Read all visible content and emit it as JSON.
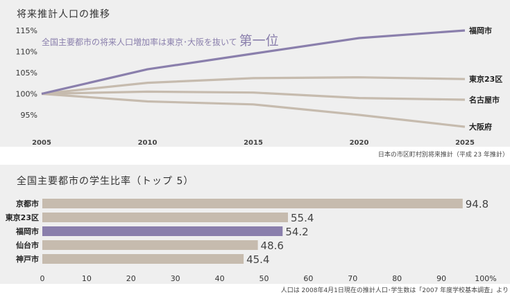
{
  "chart_data": [
    {
      "type": "line",
      "title": "将来推計人口の推移",
      "annotation": {
        "text": "全国主要都市の将来人口増加率は東京･大阪を抜いて",
        "emphasis": "第一位"
      },
      "x": [
        2005,
        2010,
        2015,
        2020,
        2025
      ],
      "x_ticks": [
        "2005",
        "2010",
        "2015",
        "2020",
        "2025"
      ],
      "y_ticks": [
        "95%",
        "100%",
        "105%",
        "110%",
        "115%"
      ],
      "ylim": [
        92,
        116
      ],
      "series": [
        {
          "name": "福岡市",
          "values": [
            100,
            105.8,
            109.5,
            113.2,
            115.0
          ],
          "color": "#8a7fac"
        },
        {
          "name": "東京23区",
          "values": [
            100,
            102.6,
            103.7,
            103.9,
            103.5
          ],
          "color": "#c6bbae"
        },
        {
          "name": "名古屋市",
          "values": [
            100,
            100.5,
            100.3,
            99.0,
            98.6
          ],
          "color": "#c6bbae"
        },
        {
          "name": "大阪府",
          "values": [
            100,
            98.2,
            97.5,
            95.0,
            92.2
          ],
          "color": "#c6bbae"
        }
      ],
      "source": "日本の市区町村別将来推計（平成 23 年推計）"
    },
    {
      "type": "bar",
      "orientation": "horizontal",
      "title": "全国主要都市の学生比率（トップ 5）",
      "categories": [
        "京都市",
        "東京23区",
        "福岡市",
        "仙台市",
        "神戸市"
      ],
      "values": [
        94.8,
        55.4,
        54.2,
        48.6,
        45.4
      ],
      "labels": [
        "94.8",
        "55.4",
        "54.2",
        "48.6",
        "45.4"
      ],
      "highlight": "福岡市",
      "bar_color": "#c6bbae",
      "highlight_color": "#8a7fac",
      "xlim": [
        0,
        100
      ],
      "x_ticks": [
        "0",
        "10",
        "20",
        "30",
        "40",
        "50",
        "60",
        "70",
        "80",
        "90",
        "100%"
      ],
      "source": "人口は 2008年4月1日現在の推計人口･学生数は「2007 年度学校基本調査」より"
    }
  ]
}
